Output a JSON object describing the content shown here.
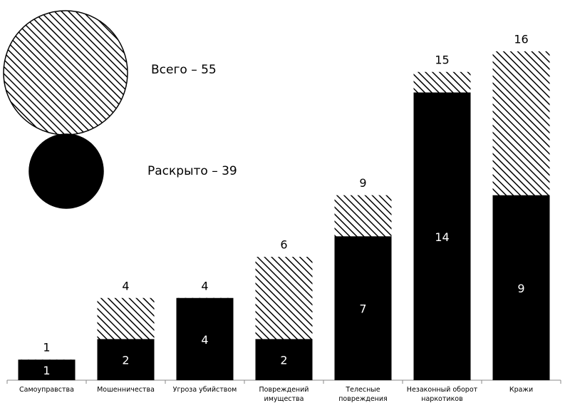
{
  "chart_data": {
    "type": "overlap-bar",
    "categories": [
      "Самоуправства",
      "Мошенничества",
      "Угроза убийством",
      "Повреждений имущества",
      "Телесные повреждения",
      "Незаконный оборот наркотиков",
      "Кражи"
    ],
    "series": [
      {
        "name": "Всего – 55",
        "color": "#000000",
        "hatched": true,
        "values": [
          1,
          4,
          4,
          6,
          9,
          15,
          16
        ]
      },
      {
        "name": "Раскрыто – 39",
        "color": "#000000",
        "hatched": false,
        "values": [
          1,
          2,
          4,
          2,
          7,
          14,
          9
        ]
      }
    ],
    "ylim": [
      0,
      16
    ]
  }
}
